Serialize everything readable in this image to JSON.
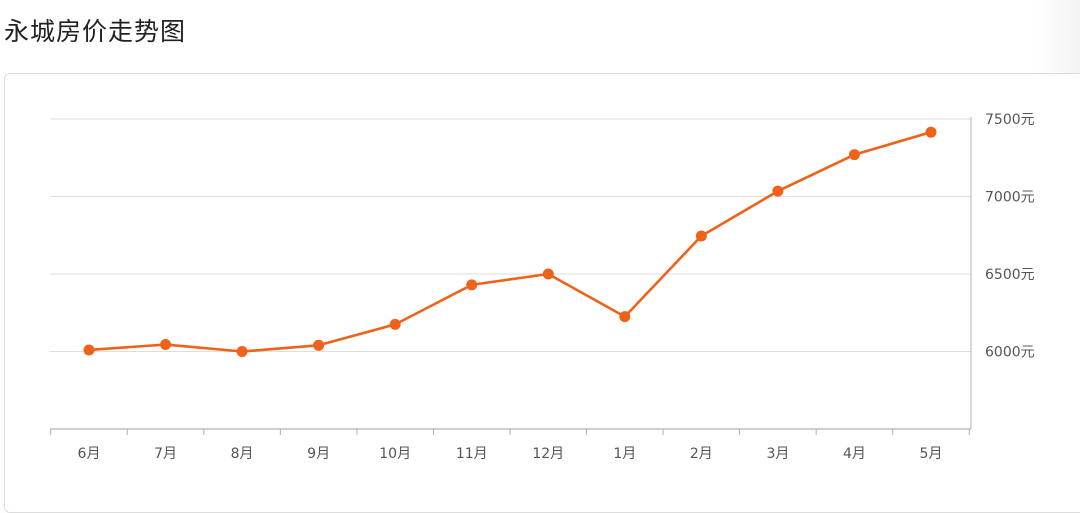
{
  "page": {
    "title": "永城房价走势图"
  },
  "colors": {
    "line": "#ee6219",
    "grid": "#dedede",
    "axis": "#b0b0b0",
    "text": "#555555"
  },
  "chart_data": {
    "type": "line",
    "title": "",
    "xlabel": "",
    "ylabel": "",
    "categories": [
      "6月",
      "7月",
      "8月",
      "9月",
      "10月",
      "11月",
      "12月",
      "1月",
      "2月",
      "3月",
      "4月",
      "5月"
    ],
    "series": [
      {
        "values": [
          6010,
          6045,
          6000,
          6040,
          6175,
          6430,
          6500,
          6225,
          6745,
          7035,
          7270,
          7415
        ]
      }
    ],
    "ylim": [
      5500,
      7500
    ],
    "y_ticks": [
      6000,
      6500,
      7000,
      7500
    ],
    "y_tick_labels": [
      "6000元",
      "6500元",
      "7000元",
      "7500元"
    ],
    "y_axis_side": "right",
    "grid": true,
    "legend": "none"
  }
}
